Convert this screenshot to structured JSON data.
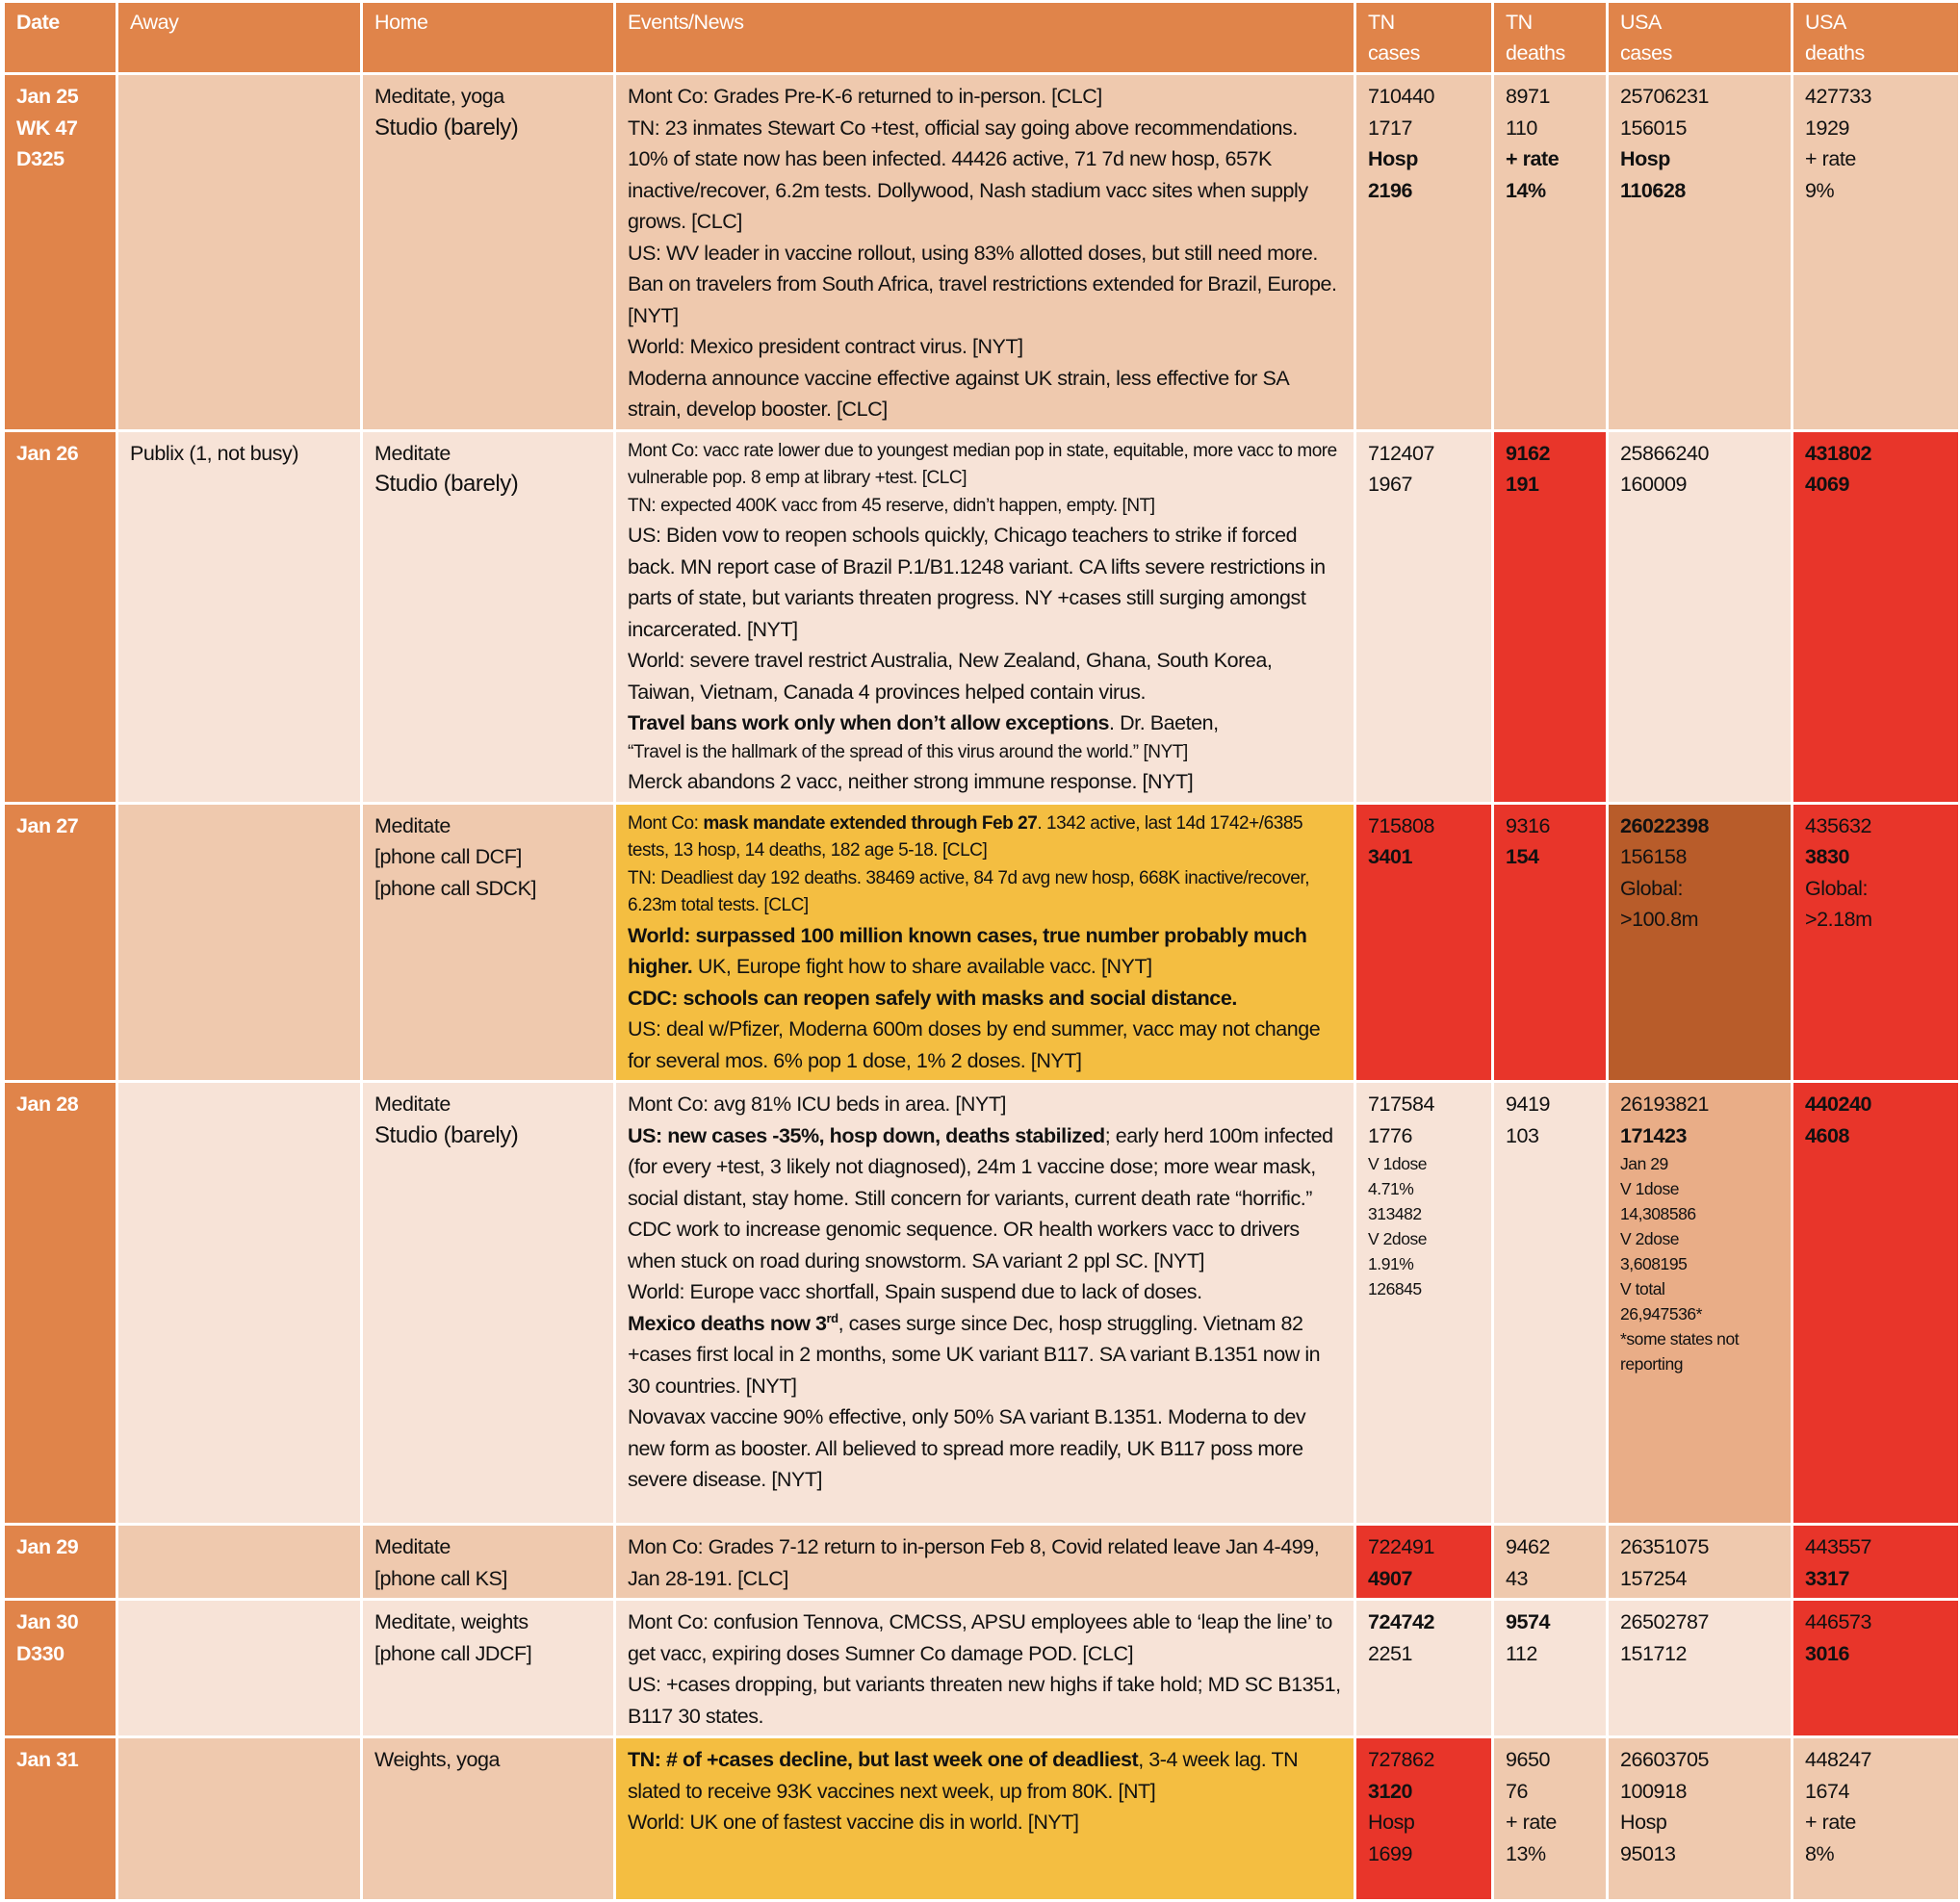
{
  "colors": {
    "header": "#E0844A",
    "date_col": "#E0844A",
    "row_dark": "#EFC9AE",
    "row_light": "#F7E3D7",
    "red": "#E8352A",
    "yellow": "#F4BE41",
    "brown": "#B85C2A",
    "tan": "#E9AD87"
  },
  "headers": [
    "Date",
    "Away",
    "Home",
    "Events/News",
    "TN\ncases",
    "TN\ndeaths",
    "USA\ncases",
    "USA\ndeaths"
  ],
  "rows": [
    {
      "bg": "#EFC9AE",
      "date": [
        "Jan 25",
        "WK 47",
        "D325"
      ],
      "away": "",
      "home": [
        {
          "t": "Meditate, yoga"
        },
        {
          "t": "Studio (barely)",
          "lg": true
        }
      ],
      "events": [
        {
          "segs": [
            {
              "t": "Mont Co: Grades Pre-K-6 returned to in-person. [CLC]"
            }
          ]
        },
        {
          "segs": [
            {
              "t": "TN: 23 inmates Stewart Co +test, official say going above recommendations. 10% of state now has been infected. 44426 active, 71 7d new hosp, 657K inactive/recover, 6.2m tests. Dollywood, Nash stadium vacc sites when supply grows. [CLC]"
            }
          ]
        },
        {
          "segs": [
            {
              "t": "US: WV leader in vaccine rollout, using 83% allotted doses, but still need more. Ban on travelers from South Africa, travel restrictions extended for Brazil, Europe. [NYT]"
            }
          ]
        },
        {
          "segs": [
            {
              "t": "World: Mexico president contract virus. [NYT]"
            }
          ]
        },
        {
          "segs": [
            {
              "t": "Moderna announce vaccine effective against UK strain, less effective for SA strain, develop booster. [CLC]"
            }
          ]
        }
      ],
      "cells": [
        {
          "top": [
            {
              "t": "710440"
            },
            {
              "t": "1717"
            }
          ],
          "bottom": [
            {
              "t": "Hosp",
              "b": true
            },
            {
              "t": "2196",
              "b": true
            }
          ]
        },
        {
          "top": [
            {
              "t": "8971"
            },
            {
              "t": "110"
            }
          ],
          "bottom": [
            {
              "t": "+ rate",
              "b": true
            },
            {
              "t": "14%",
              "b": true
            }
          ]
        },
        {
          "top": [
            {
              "t": "25706231"
            },
            {
              "t": "156015"
            }
          ],
          "bottom": [
            {
              "t": "Hosp",
              "b": true
            },
            {
              "t": "110628",
              "b": true
            }
          ]
        },
        {
          "top": [
            {
              "t": "427733"
            },
            {
              "t": "1929"
            }
          ],
          "bottom": [
            {
              "t": "+ rate"
            },
            {
              "t": "9%"
            }
          ]
        }
      ]
    },
    {
      "bg": "#F7E3D7",
      "date": [
        "Jan 26"
      ],
      "away": "Publix (1, not busy)",
      "home": [
        {
          "t": "Meditate"
        },
        {
          "t": "Studio (barely)",
          "lg": true
        }
      ],
      "events": [
        {
          "s": true,
          "segs": [
            {
              "t": "Mont Co: vacc rate lower due to youngest median pop in state, equitable, more vacc to more vulnerable pop. 8 emp at library +test. [CLC]"
            }
          ]
        },
        {
          "s": true,
          "segs": [
            {
              "t": "TN: expected 400K vacc from 45 reserve, didn’t happen, empty. [NT]"
            }
          ]
        },
        {
          "segs": [
            {
              "t": "US: Biden vow to reopen schools quickly, Chicago teachers to strike if forced back. MN report case of Brazil P.1/B1.1248 variant. CA lifts severe restrictions in parts of state, but variants threaten progress. NY +cases still surging amongst incarcerated. [NYT]"
            }
          ]
        },
        {
          "segs": [
            {
              "t": "World: severe travel restrict Australia, New Zealand, Ghana, South Korea, Taiwan, Vietnam, Canada 4 provinces helped contain virus."
            }
          ]
        },
        {
          "segs": [
            {
              "t": "Travel bans work only when don’t allow exceptions",
              "b": true
            },
            {
              "t": ". Dr. Baeten,"
            }
          ]
        },
        {
          "s": true,
          "segs": [
            {
              "t": "“Travel is the hallmark of the spread of this virus around the world.” [NYT]"
            }
          ]
        },
        {
          "segs": [
            {
              "t": "Merck abandons 2 vacc, neither strong immune response. [NYT]"
            }
          ]
        }
      ],
      "cells": [
        {
          "top": [
            {
              "t": "712407"
            },
            {
              "t": "1967"
            }
          ]
        },
        {
          "bg": "#E8352A",
          "top": [
            {
              "t": "9162",
              "b": true
            },
            {
              "t": "191",
              "b": true
            }
          ]
        },
        {
          "top": [
            {
              "t": "25866240"
            },
            {
              "t": "160009"
            }
          ]
        },
        {
          "bg": "#E8352A",
          "top": [
            {
              "t": "431802",
              "b": true
            },
            {
              "t": "4069",
              "b": true
            }
          ]
        }
      ]
    },
    {
      "bg": "#EFC9AE",
      "date": [
        "Jan 27"
      ],
      "away": "",
      "home": [
        {
          "t": "Meditate"
        },
        {
          "t": "[phone call DCF]"
        },
        {
          "t": "[phone call SDCK]"
        }
      ],
      "events_bg": "#F4BE41",
      "events": [
        {
          "s": true,
          "segs": [
            {
              "t": "Mont Co: "
            },
            {
              "t": "mask mandate extended through Feb 27",
              "b": true
            },
            {
              "t": ". 1342 active, last 14d 1742+/6385 tests, 13 hosp, 14 deaths, 182 age 5-18. [CLC]"
            }
          ]
        },
        {
          "s": true,
          "segs": [
            {
              "t": "TN: Deadliest day 192 deaths. 38469 active, 84 7d avg new hosp, 668K inactive/recover, 6.23m total tests. [CLC]"
            }
          ]
        },
        {
          "segs": [
            {
              "t": "World: surpassed 100 million known cases, true number probably much higher.",
              "b": true
            },
            {
              "t": " UK, Europe fight how to share available vacc. [NYT]"
            }
          ]
        },
        {
          "segs": [
            {
              "t": "CDC: schools can reopen safely with masks and social distance.",
              "b": true
            }
          ]
        },
        {
          "segs": [
            {
              "t": "US: deal w/Pfizer, Moderna 600m doses by end summer, vacc may not change for several mos. 6% pop 1 dose, 1% 2 doses. [NYT]"
            }
          ]
        }
      ],
      "cells": [
        {
          "bg": "#E8352A",
          "top": [
            {
              "t": "715808"
            },
            {
              "t": "3401",
              "b": true
            }
          ]
        },
        {
          "bg": "#E8352A",
          "top": [
            {
              "t": "9316"
            },
            {
              "t": "154",
              "b": true
            }
          ]
        },
        {
          "bg": "#B85C2A",
          "top": [
            {
              "t": "26022398",
              "b": true
            },
            {
              "t": "156158"
            }
          ],
          "bottom": [
            {
              "t": "Global:"
            },
            {
              "t": ">100.8m"
            }
          ],
          "bottom_style": "mid"
        },
        {
          "bg": "#E8352A",
          "top": [
            {
              "t": "435632"
            },
            {
              "t": "3830",
              "b": true
            }
          ],
          "bottom": [
            {
              "t": "Global:"
            },
            {
              "t": ">2.18m"
            }
          ],
          "bottom_style": "mid"
        }
      ]
    },
    {
      "bg": "#F7E3D7",
      "date": [
        "Jan 28"
      ],
      "away": "",
      "home": [
        {
          "t": "Meditate"
        },
        {
          "t": "Studio (barely)",
          "lg": true
        }
      ],
      "events": [
        {
          "segs": [
            {
              "t": "Mont Co: avg 81% ICU beds in area. [NYT]"
            }
          ]
        },
        {
          "segs": [
            {
              "t": "US: new cases -35%, hosp down, deaths stabilized",
              "b": true
            },
            {
              "t": "; early herd 100m infected (for every +test, 3 likely not diagnosed), 24m 1 vaccine dose; more wear mask, social distant, stay home. Still concern for variants, current death rate “horrific.” CDC work to increase genomic sequence. OR health workers vacc to drivers when stuck on road during snowstorm.  SA variant 2 ppl SC. [NYT]"
            }
          ]
        },
        {
          "segs": [
            {
              "t": "World: Europe vacc shortfall, Spain suspend due to lack of doses."
            }
          ]
        },
        {
          "segs": [
            {
              "t": "Mexico deaths now 3",
              "b": true
            },
            {
              "t": "rd",
              "b": true,
              "sup": true
            },
            {
              "t": ", cases surge since Dec, hosp struggling. Vietnam 82 +cases first local in 2 months, some UK variant B117. SA variant B.1351 now in 30 countries. [NYT]"
            }
          ]
        },
        {
          "segs": [
            {
              "t": "Novavax vaccine 90% effective, only 50% SA variant B.1351. Moderna to dev new form as booster. All believed to spread more readily, UK B117 poss more severe disease. [NYT]"
            }
          ]
        }
      ],
      "cells": [
        {
          "top": [
            {
              "t": "717584"
            },
            {
              "t": "1776"
            }
          ],
          "bottom": [
            {
              "t": "V 1dose"
            },
            {
              "t": "4.71%"
            },
            {
              "t": "313482"
            },
            {
              "t": "V 2dose"
            },
            {
              "t": "1.91%"
            },
            {
              "t": "126845"
            }
          ],
          "bottom_style": "small"
        },
        {
          "top": [
            {
              "t": "9419"
            },
            {
              "t": "103"
            }
          ]
        },
        {
          "bg": "#E9AD87",
          "top": [
            {
              "t": "26193821"
            },
            {
              "t": "171423",
              "b": true
            }
          ],
          "bottom": [
            {
              "t": "Jan 29"
            },
            {
              "t": "V 1dose"
            },
            {
              "t": "14,308586"
            },
            {
              "t": "V 2dose"
            },
            {
              "t": "3,608195"
            },
            {
              "t": "V total"
            },
            {
              "t": "26,947536*"
            },
            {
              "t": "*some states not reporting"
            }
          ],
          "bottom_style": "small"
        },
        {
          "bg": "#E8352A",
          "top": [
            {
              "t": "440240",
              "b": true
            },
            {
              "t": "4608",
              "b": true
            }
          ]
        }
      ]
    },
    {
      "bg": "#EFC9AE",
      "date": [
        "Jan 29"
      ],
      "away": "",
      "home": [
        {
          "t": "Meditate"
        },
        {
          "t": "[phone call KS]"
        }
      ],
      "events": [
        {
          "segs": [
            {
              "t": "Mon Co: Grades 7-12 return to in-person Feb 8, Covid related leave Jan 4-499, Jan 28-191. [CLC]"
            }
          ]
        }
      ],
      "cells": [
        {
          "bg": "#E8352A",
          "top": [
            {
              "t": "722491"
            },
            {
              "t": "4907",
              "b": true
            }
          ]
        },
        {
          "top": [
            {
              "t": "9462"
            },
            {
              "t": "43"
            }
          ]
        },
        {
          "top": [
            {
              "t": "26351075"
            },
            {
              "t": "157254"
            }
          ]
        },
        {
          "bg": "#E8352A",
          "top": [
            {
              "t": "443557"
            },
            {
              "t": "3317",
              "b": true
            }
          ]
        }
      ]
    },
    {
      "bg": "#F7E3D7",
      "date": [
        "Jan 30",
        "D330"
      ],
      "away": "",
      "home": [
        {
          "t": "Meditate, weights"
        },
        {
          "t": "[phone call JDCF]"
        }
      ],
      "events": [
        {
          "segs": [
            {
              "t": "Mont Co: confusion Tennova, CMCSS, APSU employees able to ‘leap the line’ to get vacc, expiring doses Sumner Co damage POD. [CLC]"
            }
          ]
        },
        {
          "segs": [
            {
              "t": "US: +cases dropping, but variants threaten new highs if take hold; MD SC B1351, B117 30 states."
            }
          ]
        }
      ],
      "cells": [
        {
          "top": [
            {
              "t": "724742",
              "b": true
            },
            {
              "t": "2251"
            }
          ]
        },
        {
          "top": [
            {
              "t": "9574",
              "b": true
            },
            {
              "t": "112"
            }
          ]
        },
        {
          "top": [
            {
              "t": "26502787"
            },
            {
              "t": "151712"
            }
          ]
        },
        {
          "bg": "#E8352A",
          "top": [
            {
              "t": "446573"
            },
            {
              "t": "3016",
              "b": true
            }
          ]
        }
      ]
    },
    {
      "bg": "#EFC9AE",
      "date": [
        "Jan 31"
      ],
      "away": "",
      "home": [
        {
          "t": "Weights, yoga"
        }
      ],
      "events_bg": "#F4BE41",
      "events": [
        {
          "segs": [
            {
              "t": "TN: # of +cases decline, but last week one of deadliest",
              "b": true
            },
            {
              "t": ", 3-4 week lag. TN slated to receive 93K vaccines next week, up from 80K. [NT]"
            }
          ]
        },
        {
          "segs": [
            {
              "t": "World: UK one of fastest vaccine dis in world. [NYT]"
            }
          ]
        }
      ],
      "cells": [
        {
          "bg": "#E8352A",
          "top": [
            {
              "t": "727862"
            },
            {
              "t": "3120",
              "b": true
            }
          ],
          "bottom": [
            {
              "t": "Hosp"
            },
            {
              "t": "1699"
            }
          ]
        },
        {
          "top": [
            {
              "t": "9650"
            },
            {
              "t": "76"
            }
          ],
          "bottom": [
            {
              "t": "+ rate"
            },
            {
              "t": "13%"
            }
          ]
        },
        {
          "top": [
            {
              "t": "26603705"
            },
            {
              "t": "100918"
            }
          ],
          "bottom": [
            {
              "t": "Hosp"
            },
            {
              "t": "95013"
            }
          ]
        },
        {
          "top": [
            {
              "t": "448247"
            },
            {
              "t": "1674"
            }
          ],
          "bottom": [
            {
              "t": "+ rate"
            },
            {
              "t": "8%"
            }
          ]
        }
      ]
    }
  ]
}
